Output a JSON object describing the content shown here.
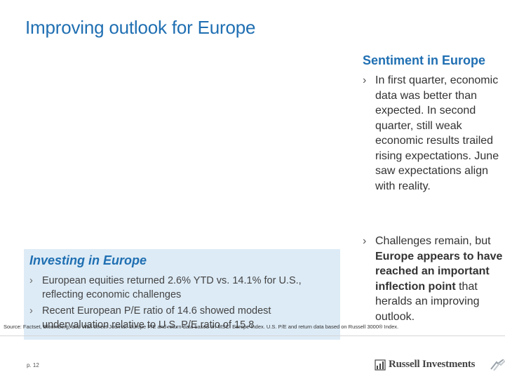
{
  "title": "Improving outlook for Europe",
  "sentiment": {
    "heading": "Sentiment in Europe",
    "bullets": [
      {
        "text": "In first quarter, economic data was better than expected. In second quarter, still weak economic results trailed rising expectations. June saw expectations align with reality."
      },
      {
        "pre": "Challenges remain, but ",
        "bold1": "Europe appears to have reached an important inflection point",
        "post": " that heralds an improving outlook."
      }
    ]
  },
  "investing": {
    "heading": "Investing in Europe",
    "items": [
      "European equities returned 2.6% YTD vs. 14.1% for U.S., reflecting economic challenges",
      "Recent European P/E ratio of 14.6 showed modest undervaluation relative to U.S. P/E ratio of 15.8"
    ]
  },
  "source": "Source: Factset, Bloomberg, and Wall Street Journal. Europe P/E and return data based on MSCI Europe Index. U.S. P/E and return data based on Russell 3000® Index.",
  "page_number": "p. 12",
  "logo_text": "Russell Investments",
  "bullet_glyph": "›",
  "colors": {
    "accent": "#1f6fb2",
    "box": "#ddebf6"
  }
}
